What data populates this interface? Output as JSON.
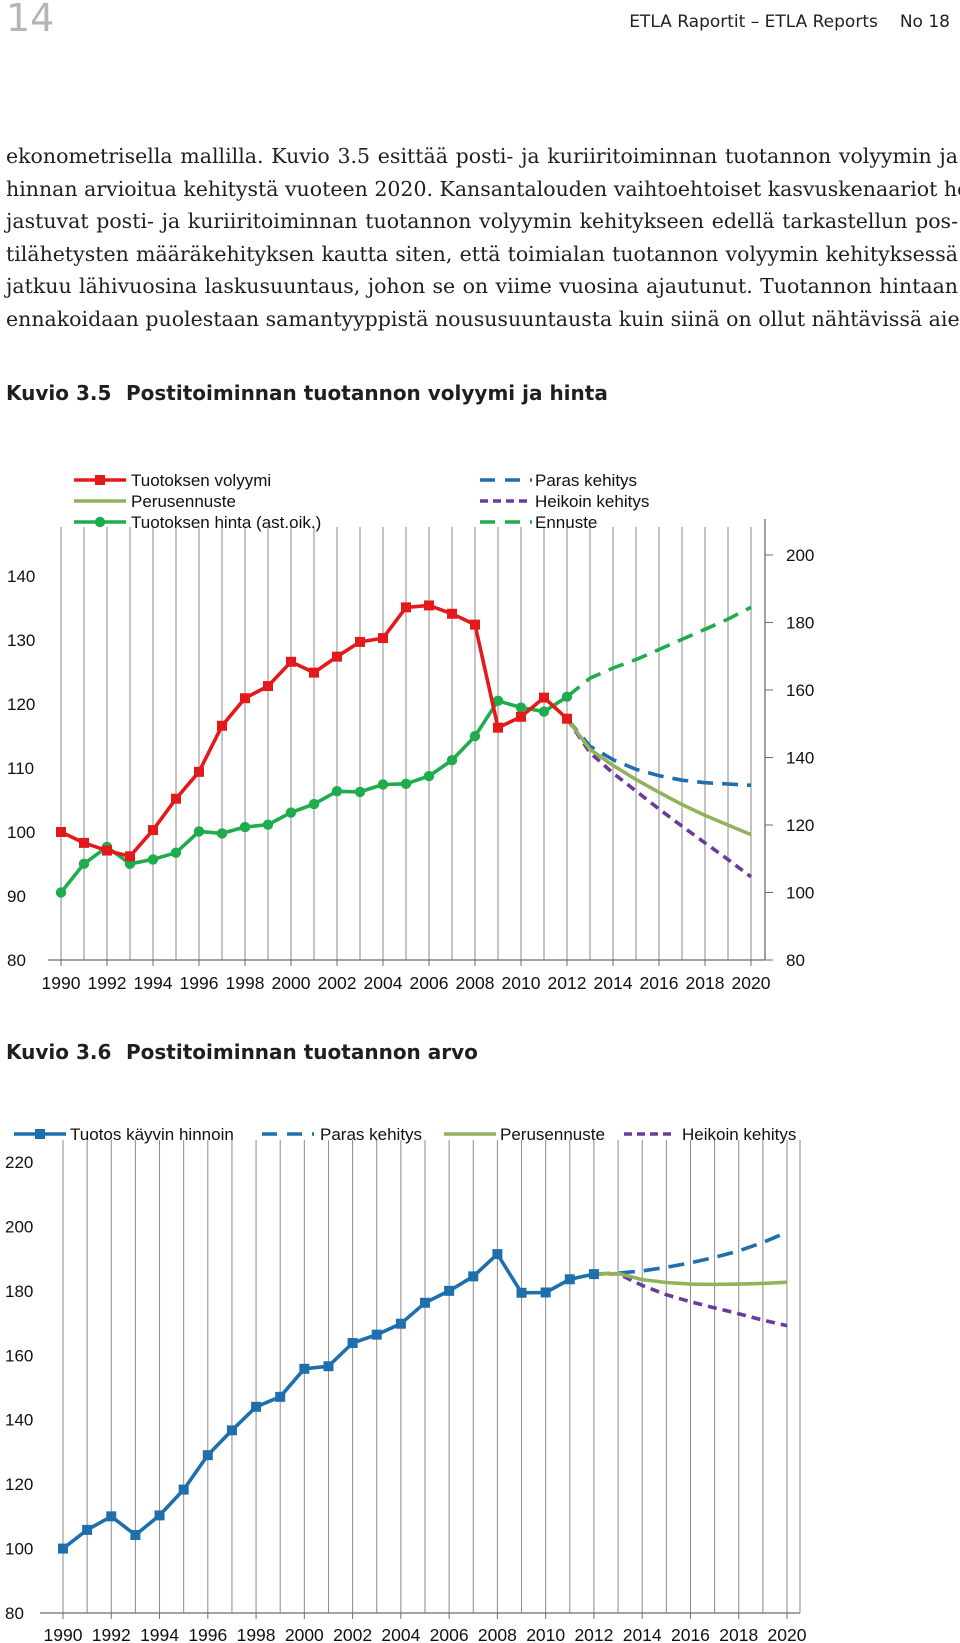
{
  "header": {
    "page_number": "14",
    "publication": "ETLA Raportit – ETLA Reports",
    "issue": "No 18"
  },
  "paragraph": {
    "lines": [
      "ekonometrisella mallilla. Kuvio 3.5 esittää posti- ja kuriiritoiminnan tuotannon volyymin ja",
      "hinnan arvioitua kehitystä vuoteen 2020. Kansantalouden vaihtoehtoiset kasvuskenaariot hei-",
      "jastuvat posti- ja kuriiritoiminnan tuotannon volyymin kehitykseen edellä tarkastellun pos-",
      "tilähetysten määräkehityksen kautta siten, että toimialan tuotannon volyymin kehityksessä",
      "jatkuu lähivuosina laskusuuntaus, johon se on viime vuosina ajautunut. Tuotannon hintaan",
      "ennakoidaan puolestaan samantyyppistä noususuuntausta kuin siinä on ollut nähtävissä aiem-"
    ]
  },
  "figure1": {
    "number": "Kuvio 3.5",
    "title": "Postitoiminnan tuotannon volyymi ja hinta"
  },
  "figure2": {
    "number": "Kuvio 3.6",
    "title": "Postitoiminnan tuotannon arvo"
  },
  "chart_data": [
    {
      "type": "line",
      "title": "Postitoiminnan tuotannon volyymi ja hinta",
      "x_range": [
        1990,
        2020
      ],
      "x_tick_labels": [
        "1990",
        "1992",
        "1994",
        "1996",
        "1998",
        "2000",
        "2002",
        "2004",
        "2006",
        "2008",
        "2010",
        "2012",
        "2014",
        "2016",
        "2018",
        "2020"
      ],
      "left_axis": {
        "range": [
          80,
          140
        ],
        "ticks": [
          "80",
          "90",
          "100",
          "110",
          "120",
          "130",
          "140"
        ]
      },
      "right_axis": {
        "range": [
          80,
          200
        ],
        "ticks": [
          "80",
          "100",
          "120",
          "140",
          "160",
          "180",
          "200"
        ]
      },
      "legend_left": [
        "Tuotoksen volyymi",
        "Perusennuste",
        "Tuotoksen hinta (ast.oik.)"
      ],
      "legend_right": [
        "Paras kehitys",
        "Heikoin kehitys",
        "Ennuste"
      ],
      "colors": {
        "volume": "#e31a1c",
        "base": "#92b25b",
        "price": "#1fac4d",
        "best": "#1f6fad",
        "worst": "#6b3b9b",
        "forecast": "#1fac4d"
      },
      "series": [
        {
          "name": "Tuotoksen volyymi",
          "axis": "left",
          "style": "solid-square",
          "x": [
            1990,
            1991,
            1992,
            1993,
            1994,
            1995,
            1996,
            1997,
            1998,
            1999,
            2000,
            2001,
            2002,
            2003,
            2004,
            2005,
            2006,
            2007,
            2008,
            2009,
            2010,
            2011,
            2012
          ],
          "values": [
            100,
            98.3,
            97.1,
            96.2,
            100.3,
            105.2,
            109.4,
            116.6,
            120.9,
            122.8,
            126.6,
            124.9,
            127.4,
            129.7,
            130.3,
            135.1,
            135.4,
            134.1,
            132.4,
            116.3,
            118,
            121,
            117.7
          ]
        },
        {
          "name": "Tuotoksen hinta (ast.oik.)",
          "axis": "right",
          "style": "solid-circle",
          "x": [
            1990,
            1991,
            1992,
            1993,
            1994,
            1995,
            1996,
            1997,
            1998,
            1999,
            2000,
            2001,
            2002,
            2003,
            2004,
            2005,
            2006,
            2007,
            2008,
            2009,
            2010,
            2011,
            2012
          ],
          "values": [
            100,
            108.5,
            113.5,
            108.5,
            109.8,
            111.8,
            118.1,
            117.5,
            119.4,
            120.1,
            123.7,
            126.2,
            130,
            129.8,
            132,
            132.2,
            134.5,
            139.2,
            146.3,
            156.8,
            154.8,
            153.6,
            158
          ]
        },
        {
          "name": "Ennuste",
          "axis": "right",
          "style": "dashed",
          "x": [
            2012,
            2013,
            2014,
            2015,
            2016,
            2017,
            2018,
            2019,
            2020
          ],
          "values": [
            158,
            163.5,
            166.5,
            169,
            172,
            175,
            178,
            181,
            184.5
          ]
        },
        {
          "name": "Paras kehitys",
          "axis": "left",
          "style": "dashed",
          "x": [
            2012,
            2013,
            2014,
            2015,
            2016,
            2017,
            2018,
            2019,
            2020
          ],
          "values": [
            117.7,
            113.4,
            111.3,
            109.8,
            108.8,
            108.1,
            107.7,
            107.5,
            107.3
          ]
        },
        {
          "name": "Perusennuste",
          "axis": "left",
          "style": "solid",
          "x": [
            2012,
            2013,
            2014,
            2015,
            2016,
            2017,
            2018,
            2019,
            2020
          ],
          "values": [
            117.7,
            112.9,
            110.4,
            108.2,
            106.2,
            104.3,
            102.6,
            101.1,
            99.6
          ]
        },
        {
          "name": "Heikoin kehitys",
          "axis": "left",
          "style": "dotted",
          "x": [
            2012,
            2013,
            2014,
            2015,
            2016,
            2017,
            2018,
            2019,
            2020
          ],
          "values": [
            117.7,
            112.4,
            109.2,
            106.4,
            103.6,
            100.9,
            98.3,
            95.7,
            93
          ]
        }
      ]
    },
    {
      "type": "line",
      "title": "Postitoiminnan tuotannon arvo",
      "x_range": [
        1990,
        2020
      ],
      "x_tick_labels": [
        "1990",
        "1992",
        "1994",
        "1996",
        "1998",
        "2000",
        "2002",
        "2004",
        "2006",
        "2008",
        "2010",
        "2012",
        "2014",
        "2016",
        "2018",
        "2020"
      ],
      "y_axis": {
        "range": [
          80,
          220
        ],
        "ticks": [
          "80",
          "100",
          "120",
          "140",
          "160",
          "180",
          "200",
          "220"
        ]
      },
      "legend": [
        "Tuotos käyvin hinnoin",
        "Paras kehitys",
        "Perusennuste",
        "Heikoin kehitys"
      ],
      "colors": {
        "value": "#1f6fad",
        "best": "#1f6fad",
        "base": "#92b25b",
        "worst": "#6b3b9b"
      },
      "series": [
        {
          "name": "Tuotos käyvin hinnoin",
          "style": "solid-square",
          "x": [
            1990,
            1991,
            1992,
            1993,
            1994,
            1995,
            1996,
            1997,
            1998,
            1999,
            2000,
            2001,
            2002,
            2003,
            2004,
            2005,
            2006,
            2007,
            2008,
            2009,
            2010,
            2011,
            2012
          ],
          "values": [
            100,
            105.8,
            110,
            104.2,
            110.3,
            118.3,
            129,
            136.7,
            144,
            147.1,
            155.8,
            156.6,
            163.8,
            166.4,
            169.8,
            176.3,
            180,
            184.5,
            191.4,
            179.4,
            179.5,
            183.6,
            185.2
          ]
        },
        {
          "name": "Paras kehitys",
          "style": "dashed",
          "x": [
            2012,
            2013,
            2014,
            2015,
            2016,
            2017,
            2018,
            2019,
            2020
          ],
          "values": [
            185.2,
            185.5,
            186.2,
            187.3,
            188.7,
            190.4,
            192.4,
            195,
            198.2
          ]
        },
        {
          "name": "Perusennuste",
          "style": "solid",
          "x": [
            2012,
            2013,
            2014,
            2015,
            2016,
            2017,
            2018,
            2019,
            2020
          ],
          "values": [
            185.2,
            185.4,
            183.5,
            182.6,
            182.1,
            182,
            182.1,
            182.3,
            182.7
          ]
        },
        {
          "name": "Heikoin kehitys",
          "style": "dotted",
          "x": [
            2012,
            2013,
            2014,
            2015,
            2016,
            2017,
            2018,
            2019,
            2020
          ],
          "values": [
            185.2,
            185.3,
            181.7,
            178.8,
            176.6,
            174.7,
            172.9,
            170.9,
            169.2
          ]
        }
      ]
    }
  ]
}
